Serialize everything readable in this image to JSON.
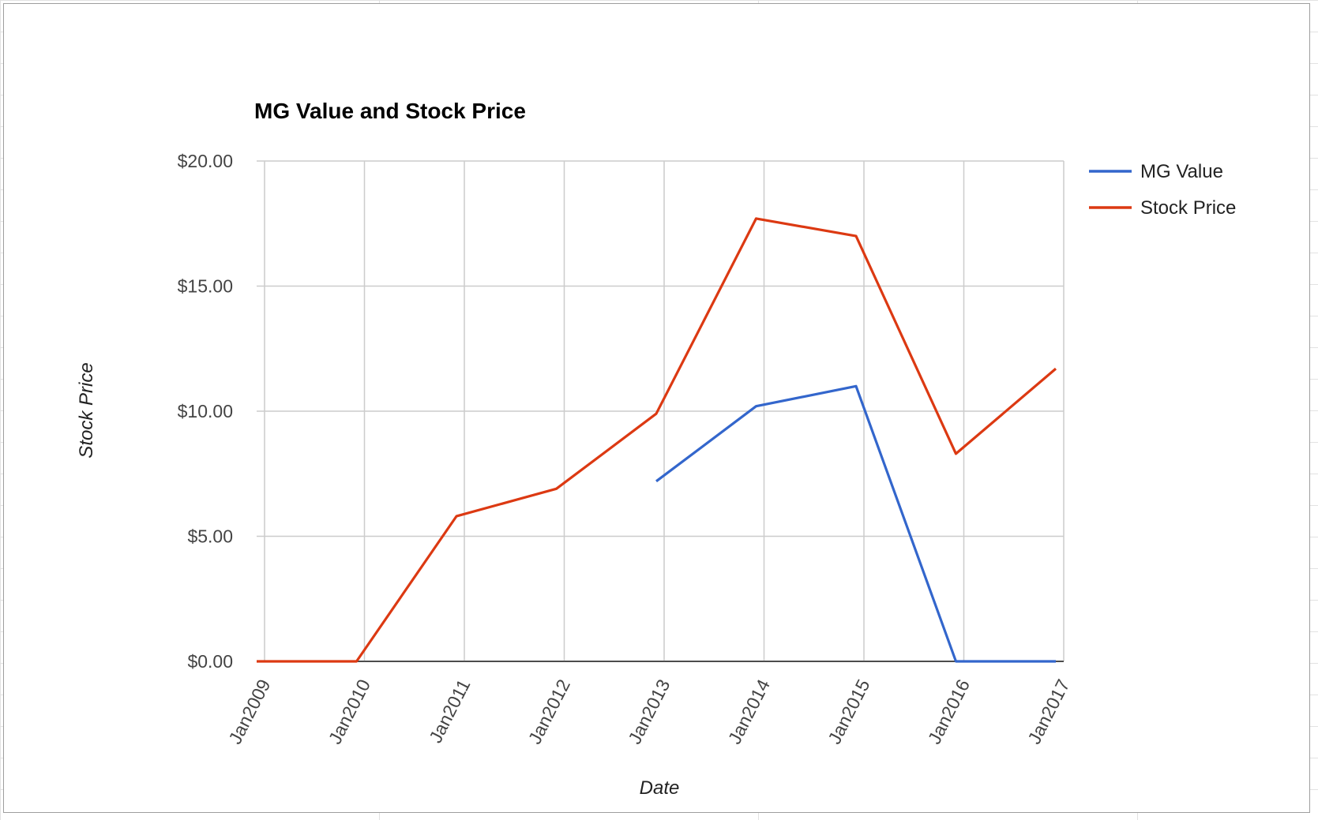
{
  "chart_data": {
    "type": "line",
    "title": "MG Value and Stock Price",
    "xlabel": "Date",
    "ylabel": "Stock Price",
    "categories": [
      "Jan2009",
      "Jan2010",
      "Jan2011",
      "Jan2012",
      "Jan2013",
      "Jan2014",
      "Jan2015",
      "Jan2016",
      "Jan2017"
    ],
    "y_ticks": [
      "$0.00",
      "$5.00",
      "$10.00",
      "$15.00",
      "$20.00"
    ],
    "ylim": [
      0,
      20
    ],
    "grid": true,
    "legend_position": "right",
    "series": [
      {
        "name": "MG Value",
        "color": "#3366cc",
        "values": [
          null,
          null,
          null,
          null,
          7.2,
          10.2,
          11.0,
          0,
          0
        ]
      },
      {
        "name": "Stock Price",
        "color": "#dc3912",
        "values": [
          0,
          0,
          5.8,
          6.9,
          9.9,
          17.7,
          17.0,
          8.3,
          11.7
        ]
      }
    ]
  }
}
